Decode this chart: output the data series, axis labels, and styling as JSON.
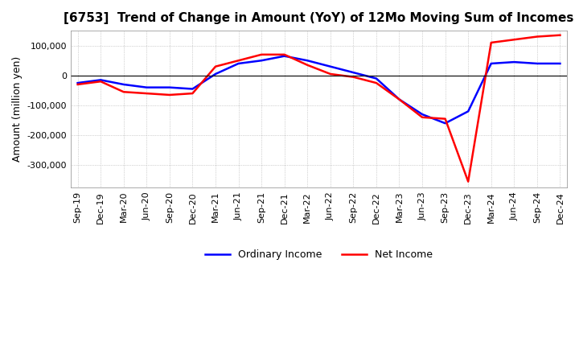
{
  "title": "[6753]  Trend of Change in Amount (YoY) of 12Mo Moving Sum of Incomes",
  "ylabel": "Amount (million yen)",
  "x_labels": [
    "Sep-19",
    "Dec-19",
    "Mar-20",
    "Jun-20",
    "Sep-20",
    "Dec-20",
    "Mar-21",
    "Jun-21",
    "Sep-21",
    "Dec-21",
    "Mar-22",
    "Jun-22",
    "Sep-22",
    "Dec-22",
    "Mar-23",
    "Jun-23",
    "Sep-23",
    "Dec-23",
    "Mar-24",
    "Jun-24",
    "Sep-24",
    "Dec-24"
  ],
  "ordinary_income": [
    -25000,
    -15000,
    -30000,
    -40000,
    -40000,
    -45000,
    5000,
    40000,
    50000,
    65000,
    50000,
    30000,
    10000,
    -10000,
    -80000,
    -130000,
    -160000,
    -120000,
    40000,
    45000,
    40000,
    40000
  ],
  "net_income": [
    -30000,
    -20000,
    -55000,
    -60000,
    -65000,
    -60000,
    30000,
    50000,
    70000,
    70000,
    35000,
    5000,
    -5000,
    -25000,
    -80000,
    -140000,
    -145000,
    -355000,
    110000,
    120000,
    130000,
    135000
  ],
  "ylim": [
    -375000,
    150000
  ],
  "yticks": [
    100000,
    0,
    -100000,
    -200000,
    -300000
  ],
  "ordinary_color": "#0000ff",
  "net_color": "#ff0000",
  "grid_color": "#aaaaaa",
  "background_color": "#ffffff",
  "legend_labels": [
    "Ordinary Income",
    "Net Income"
  ],
  "title_fontsize": 11,
  "axis_fontsize": 8,
  "ylabel_fontsize": 9
}
